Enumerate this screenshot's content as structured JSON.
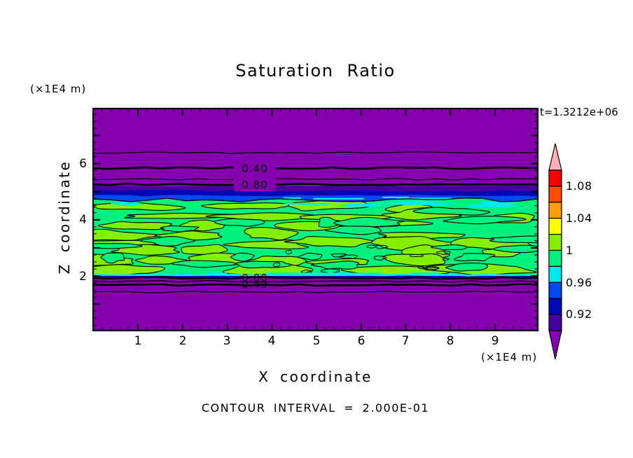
{
  "title": "Saturation Ratio",
  "annotations": {
    "time": "t=1.3212e+06",
    "contour_interval": "CONTOUR INTERVAL = 2.000E-01",
    "contour_label_top_1": "0.40",
    "contour_label_top_2": "0.80",
    "contour_label_bottom_1": "0.80",
    "contour_label_bottom_2": "0.40"
  },
  "x_axis": {
    "label": "X coordinate",
    "units": "(×1E4 m)",
    "ticks": [
      "1",
      "2",
      "3",
      "4",
      "5",
      "6",
      "7",
      "8",
      "9"
    ]
  },
  "y_axis": {
    "label": "Z coordinate",
    "units": "(×1E4 m)",
    "ticks": [
      "6",
      "4",
      "2"
    ]
  },
  "colorbar": {
    "tick_labels": [
      "1.08",
      "1.04",
      "1",
      "0.96",
      "0.92"
    ]
  },
  "chart_data": {
    "type": "heatmap",
    "style": "filled contour plot with labeled line contours and double-arrow colorbar",
    "title": "Saturation Ratio",
    "time_annotation": "t=1.3212e+06",
    "xlabel": "X coordinate",
    "ylabel": "Z coordinate",
    "axis_units": "(×1E4 m)",
    "xlim": [
      0,
      9.96
    ],
    "ylim": [
      0,
      7.9
    ],
    "xticks": [
      1,
      2,
      3,
      4,
      5,
      6,
      7,
      8,
      9
    ],
    "yticks": [
      2,
      4,
      6
    ],
    "grid": false,
    "contour_interval": 0.2,
    "labeled_contour_values": [
      0.4,
      0.8
    ],
    "colorbar": {
      "position": "right",
      "tick_labels": [
        "1.08",
        "1.04",
        "1",
        "0.96",
        "0.92"
      ],
      "level_edges": [
        0.9,
        0.92,
        0.94,
        0.96,
        0.98,
        1.0,
        1.02,
        1.04,
        1.06,
        1.08,
        1.1
      ]
    },
    "palette": {
      "above_max": "#FFB0B4",
      "segments_high_to_low": [
        "#F80000",
        "#FF4A00",
        "#FF9E00",
        "#FFFF00",
        "#84F000",
        "#00F07E",
        "#00E8F0",
        "#0048F0",
        "#0008B4",
        "#4600A0"
      ],
      "below_min": "#8400AC"
    },
    "field_profile_by_z": [
      {
        "z_range": [
          6.4,
          7.9
        ],
        "saturation": "< 0.2",
        "appearance": "uniform purple"
      },
      {
        "z_range": [
          5.3,
          6.4
        ],
        "saturation": "0.2 - 0.8",
        "appearance": "purple with horizontal contour lines labeled 0.40 and 0.80"
      },
      {
        "z_range": [
          4.7,
          5.3
        ],
        "saturation": "0.8 - 0.98",
        "appearance": "thin dark-violet / navy / blue stripes with cyan streaks"
      },
      {
        "z_range": [
          2.0,
          4.7
        ],
        "saturation": "~0.98 - 1.02",
        "appearance": "mottled spring-green and chartreuse lenses outlined by the 1.0 contour"
      },
      {
        "z_range": [
          1.4,
          2.0
        ],
        "saturation": "0.98 -> 0.2",
        "appearance": "tightly packed contours with overlapping labels 0.80 and 0.40"
      },
      {
        "z_range": [
          0.0,
          1.4
        ],
        "saturation": "< 0.2",
        "appearance": "uniform purple"
      }
    ]
  }
}
